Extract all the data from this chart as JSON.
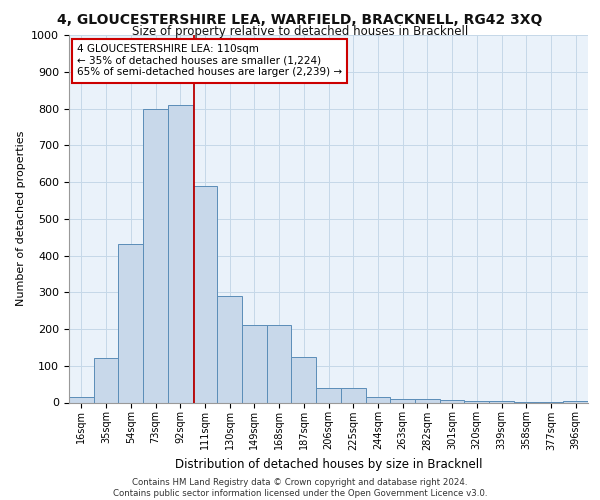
{
  "title_line1": "4, GLOUCESTERSHIRE LEA, WARFIELD, BRACKNELL, RG42 3XQ",
  "title_line2": "Size of property relative to detached houses in Bracknell",
  "xlabel": "Distribution of detached houses by size in Bracknell",
  "ylabel": "Number of detached properties",
  "footer_line1": "Contains HM Land Registry data © Crown copyright and database right 2024.",
  "footer_line2": "Contains public sector information licensed under the Open Government Licence v3.0.",
  "bar_labels": [
    "16sqm",
    "35sqm",
    "54sqm",
    "73sqm",
    "92sqm",
    "111sqm",
    "130sqm",
    "149sqm",
    "168sqm",
    "187sqm",
    "206sqm",
    "225sqm",
    "244sqm",
    "263sqm",
    "282sqm",
    "301sqm",
    "320sqm",
    "339sqm",
    "358sqm",
    "377sqm",
    "396sqm"
  ],
  "bar_values": [
    15,
    120,
    430,
    800,
    810,
    590,
    290,
    210,
    210,
    125,
    40,
    40,
    15,
    10,
    10,
    8,
    5,
    3,
    2,
    1,
    5
  ],
  "bar_color": "#c8d8ea",
  "bar_edge_color": "#5b8db8",
  "grid_color": "#c5d8e8",
  "bg_color": "#eaf2fa",
  "annotation_text": "4 GLOUCESTERSHIRE LEA: 110sqm\n← 35% of detached houses are smaller (1,224)\n65% of semi-detached houses are larger (2,239) →",
  "annotation_box_color": "#ffffff",
  "annotation_box_edge": "#cc0000",
  "vline_x": 4.55,
  "vline_color": "#bb0000",
  "ylim": [
    0,
    1000
  ],
  "yticks": [
    0,
    100,
    200,
    300,
    400,
    500,
    600,
    700,
    800,
    900,
    1000
  ]
}
